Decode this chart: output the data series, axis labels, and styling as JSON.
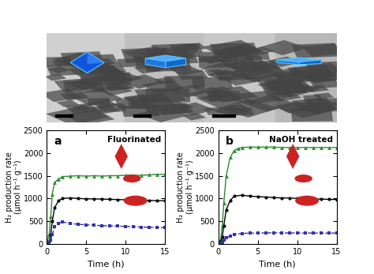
{
  "panel_a": {
    "title": "Fluorinated",
    "label": "a",
    "green_data": {
      "x": [
        0,
        0.3,
        0.5,
        0.7,
        1.0,
        1.5,
        2.0,
        3.0,
        4.0,
        5.0,
        6.0,
        7.0,
        8.0,
        9.0,
        10.0,
        11.0,
        12.0,
        13.0,
        14.0,
        15.0
      ],
      "y": [
        0,
        200,
        600,
        1100,
        1350,
        1430,
        1480,
        1490,
        1500,
        1490,
        1500,
        1490,
        1500,
        1500,
        1510,
        1510,
        1510,
        1520,
        1530,
        1530
      ]
    },
    "black_data": {
      "x": [
        0,
        0.3,
        0.5,
        0.7,
        1.0,
        1.5,
        2.0,
        3.0,
        4.0,
        5.0,
        6.0,
        7.0,
        8.0,
        9.0,
        10.0,
        11.0,
        12.0,
        13.0,
        14.0,
        15.0
      ],
      "y": [
        0,
        50,
        200,
        500,
        800,
        950,
        1000,
        1010,
        1000,
        990,
        990,
        985,
        980,
        975,
        970,
        965,
        960,
        955,
        950,
        950
      ]
    },
    "blue_data": {
      "x": [
        0,
        0.3,
        0.5,
        0.7,
        1.0,
        1.5,
        2.0,
        3.0,
        4.0,
        5.0,
        6.0,
        7.0,
        8.0,
        9.0,
        10.0,
        11.0,
        12.0,
        13.0,
        14.0,
        15.0
      ],
      "y": [
        0,
        20,
        80,
        200,
        380,
        450,
        480,
        450,
        430,
        420,
        410,
        400,
        395,
        390,
        385,
        375,
        370,
        365,
        360,
        355
      ]
    }
  },
  "panel_b": {
    "title": "NaOH treated",
    "label": "b",
    "green_data": {
      "x": [
        0,
        0.3,
        0.5,
        0.7,
        1.0,
        1.5,
        2.0,
        2.5,
        3.0,
        4.0,
        5.0,
        6.0,
        7.0,
        8.0,
        9.0,
        10.0,
        11.0,
        12.0,
        13.0,
        14.0,
        15.0
      ],
      "y": [
        0,
        100,
        400,
        900,
        1500,
        1900,
        2050,
        2100,
        2120,
        2130,
        2130,
        2130,
        2130,
        2120,
        2120,
        2120,
        2120,
        2120,
        2120,
        2120,
        2120
      ]
    },
    "black_data": {
      "x": [
        0,
        0.3,
        0.5,
        0.7,
        1.0,
        1.5,
        2.0,
        3.0,
        4.0,
        5.0,
        6.0,
        7.0,
        8.0,
        9.0,
        10.0,
        11.0,
        12.0,
        13.0,
        14.0,
        15.0
      ],
      "y": [
        0,
        50,
        150,
        400,
        750,
        950,
        1050,
        1070,
        1050,
        1040,
        1030,
        1020,
        1010,
        1010,
        1000,
        995,
        990,
        985,
        980,
        975
      ]
    },
    "blue_data": {
      "x": [
        0,
        0.3,
        0.5,
        0.7,
        1.0,
        1.5,
        2.0,
        3.0,
        4.0,
        5.0,
        6.0,
        7.0,
        8.0,
        9.0,
        10.0,
        11.0,
        12.0,
        13.0,
        14.0,
        15.0
      ],
      "y": [
        0,
        10,
        30,
        80,
        130,
        175,
        210,
        230,
        235,
        240,
        240,
        245,
        240,
        240,
        240,
        238,
        238,
        237,
        237,
        237
      ]
    }
  },
  "xlabel": "Time (h)",
  "ylabel": "H₂ production rate\n(μmol h⁻¹ g⁻¹)",
  "ylim": [
    0,
    2500
  ],
  "xlim": [
    0,
    15
  ],
  "yticks": [
    0,
    500,
    1000,
    1500,
    2000,
    2500
  ],
  "xticks": [
    0,
    5,
    10,
    15
  ],
  "green_color": "#2e8b2e",
  "black_color": "#000000",
  "blue_color": "#3333aa",
  "top_height_ratio": 0.44,
  "bottom_height_ratio": 0.56
}
